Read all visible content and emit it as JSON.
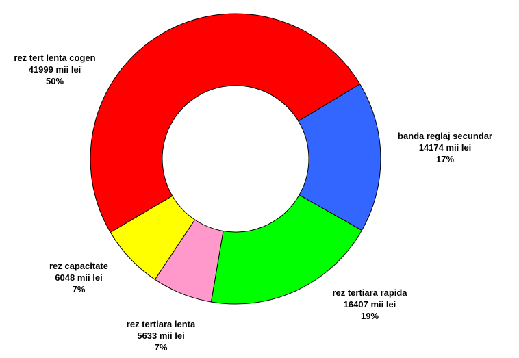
{
  "chart_data": {
    "type": "pie",
    "donut": true,
    "title": "",
    "unit": "mii lei",
    "slices": [
      {
        "name": "banda reglaj secundar",
        "value": 14174,
        "value_label": "14174 mii lei",
        "percent_label": "17%",
        "color": "#3366ff"
      },
      {
        "name": "rez tertiara rapida",
        "value": 16407,
        "value_label": "16407 mii lei",
        "percent_label": "19%",
        "color": "#00ff00"
      },
      {
        "name": "rez tertiara lenta",
        "value": 5633,
        "value_label": "5633 mii lei",
        "percent_label": "7%",
        "color": "#ff99cc"
      },
      {
        "name": "rez capacitate",
        "value": 6048,
        "value_label": "6048 mii lei",
        "percent_label": "7%",
        "color": "#ffff00"
      },
      {
        "name": "rez tert lenta cogen",
        "value": 41999,
        "value_label": "41999 mii lei",
        "percent_label": "50%",
        "color": "#ff0000"
      }
    ]
  }
}
